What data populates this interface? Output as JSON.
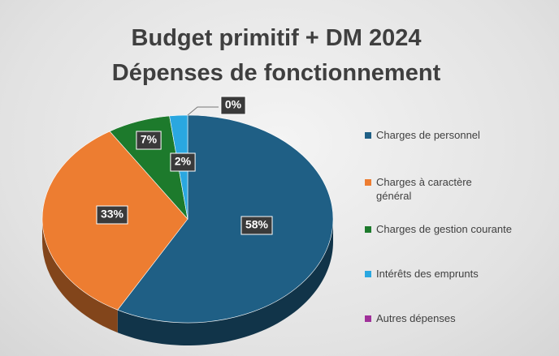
{
  "chart_data": {
    "type": "pie",
    "title": [
      "Budget primitif + DM 2024",
      "Dépenses de fonctionnement"
    ],
    "categories": [
      "Charges de personnel",
      "Charges à caractère général",
      "Charges de gestion courante",
      "Intérêts des emprunts",
      "Autres dépenses"
    ],
    "values": [
      58,
      33,
      7,
      2,
      0
    ],
    "value_labels": [
      "58%",
      "33%",
      "7%",
      "2%",
      "0%"
    ],
    "colors": [
      "#1f5f85",
      "#ed7d31",
      "#1d7a2c",
      "#2aa7e0",
      "#a0309a"
    ],
    "legend": "right"
  }
}
